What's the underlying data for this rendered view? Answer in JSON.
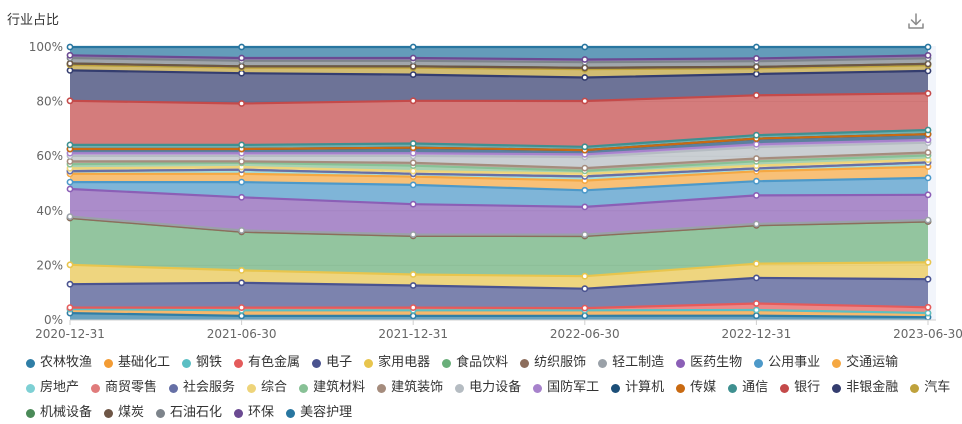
{
  "title": "行业占比",
  "icons": {
    "download": "download-icon"
  },
  "chart_data": {
    "type": "area",
    "stacked": true,
    "percent": true,
    "title": "行业占比",
    "xlabel": "",
    "ylabel": "",
    "ylim": [
      0,
      100
    ],
    "yticks": [
      "0%",
      "20%",
      "40%",
      "60%",
      "80%",
      "100%"
    ],
    "x": [
      "2020-12-31",
      "2021-06-30",
      "2021-12-31",
      "2022-06-30",
      "2022-12-31",
      "2023-06-30"
    ],
    "legend_position": "bottom",
    "series": [
      {
        "name": "农林牧渔",
        "color": "#2f7ea6",
        "values": [
          2.5,
          1.5,
          1.5,
          1.5,
          1.5,
          1.0
        ]
      },
      {
        "name": "基础化工",
        "color": "#f39c34",
        "values": [
          1.5,
          2.0,
          2.0,
          2.0,
          2.0,
          1.5
        ]
      },
      {
        "name": "钢铁",
        "color": "#5bbfc4",
        "values": [
          0.0,
          0.0,
          0.0,
          0.0,
          0.0,
          0.0
        ]
      },
      {
        "name": "有色金属",
        "color": "#e45b5b",
        "values": [
          0.5,
          1.0,
          1.0,
          0.8,
          2.3,
          2.0
        ]
      },
      {
        "name": "电子",
        "color": "#4a538f",
        "values": [
          8.5,
          9.0,
          8.0,
          7.0,
          9.0,
          10.0
        ]
      },
      {
        "name": "家用电器",
        "color": "#e8c54d",
        "values": [
          7.0,
          4.5,
          4.0,
          4.5,
          5.0,
          6.0
        ]
      },
      {
        "name": "食品饮料",
        "color": "#6aaf7a",
        "values": [
          17.0,
          14.0,
          14.0,
          14.5,
          13.5,
          14.5
        ]
      },
      {
        "name": "纺织服饰",
        "color": "#8c6d5c",
        "values": [
          0.0,
          0.0,
          0.0,
          0.0,
          0.0,
          0.0
        ]
      },
      {
        "name": "轻工制造",
        "color": "#9aa1a8",
        "values": [
          0.5,
          0.5,
          0.5,
          0.5,
          0.5,
          0.5
        ]
      },
      {
        "name": "医药生物",
        "color": "#8b5fb6",
        "values": [
          10.0,
          12.0,
          11.0,
          10.0,
          10.0,
          9.0
        ]
      },
      {
        "name": "公用事业",
        "color": "#4d99c9",
        "values": [
          2.5,
          5.5,
          7.0,
          6.0,
          5.0,
          6.0
        ]
      },
      {
        "name": "交通运输",
        "color": "#f5a842",
        "values": [
          3.0,
          3.0,
          3.0,
          3.5,
          3.5,
          4.0
        ]
      },
      {
        "name": "房地产",
        "color": "#7ed0d4",
        "values": [
          1.0,
          1.5,
          1.0,
          1.5,
          1.0,
          1.5
        ]
      },
      {
        "name": "商贸零售",
        "color": "#e07b7b",
        "values": [
          0.0,
          0.0,
          0.0,
          0.0,
          0.0,
          0.0
        ]
      },
      {
        "name": "社会服务",
        "color": "#6670a6",
        "values": [
          0.0,
          0.0,
          0.0,
          0.0,
          0.0,
          0.0
        ]
      },
      {
        "name": "综合",
        "color": "#eed47a",
        "values": [
          1.0,
          1.0,
          1.0,
          1.0,
          1.0,
          1.0
        ]
      },
      {
        "name": "建筑材料",
        "color": "#88c196",
        "values": [
          1.5,
          1.5,
          2.0,
          1.0,
          1.5,
          1.5
        ]
      },
      {
        "name": "建筑装饰",
        "color": "#a58c7d",
        "values": [
          1.0,
          0.5,
          1.0,
          1.0,
          1.0,
          1.0
        ]
      },
      {
        "name": "电力设备",
        "color": "#b5bcc2",
        "values": [
          2.0,
          2.0,
          2.5,
          4.0,
          4.0,
          3.5
        ]
      },
      {
        "name": "国防军工",
        "color": "#a782cc",
        "values": [
          1.0,
          1.0,
          1.0,
          1.0,
          1.0,
          1.0
        ]
      },
      {
        "name": "计算机",
        "color": "#1c4f78",
        "values": [
          1.5,
          1.5,
          2.0,
          1.5,
          2.0,
          2.0
        ]
      },
      {
        "name": "传媒",
        "color": "#c96a12",
        "values": [
          0.0,
          0.0,
          0.0,
          0.0,
          0.0,
          0.0
        ]
      },
      {
        "name": "通信",
        "color": "#3f9090",
        "values": [
          1.5,
          1.5,
          1.5,
          1.2,
          1.2,
          1.5
        ]
      },
      {
        "name": "银行",
        "color": "#c44a4a",
        "values": [
          16.0,
          15.0,
          15.5,
          16.5,
          14.0,
          13.0
        ]
      },
      {
        "name": "非银金融",
        "color": "#343d6f",
        "values": [
          11.0,
          11.0,
          9.5,
          8.5,
          7.5,
          8.0
        ]
      },
      {
        "name": "汽车",
        "color": "#bfa23c",
        "values": [
          2.0,
          2.0,
          2.5,
          3.0,
          2.0,
          2.0
        ]
      },
      {
        "name": "机械设备",
        "color": "#4a8a58",
        "values": [
          0.5,
          0.5,
          0.5,
          0.5,
          0.5,
          0.5
        ]
      },
      {
        "name": "煤炭",
        "color": "#6e5646",
        "values": [
          0.0,
          0.0,
          0.0,
          0.0,
          0.0,
          0.0
        ]
      },
      {
        "name": "石油石化",
        "color": "#7d848b",
        "values": [
          2.0,
          2.0,
          2.0,
          2.0,
          2.0,
          2.0
        ]
      },
      {
        "name": "环保",
        "color": "#6b4a92",
        "values": [
          1.0,
          1.0,
          1.0,
          1.0,
          1.0,
          1.0
        ]
      },
      {
        "name": "美容护理",
        "color": "#2876a0",
        "values": [
          3.0,
          4.0,
          4.0,
          4.5,
          4.0,
          3.0
        ]
      }
    ]
  }
}
